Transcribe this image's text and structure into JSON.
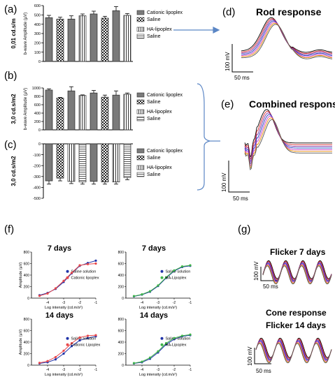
{
  "panel_labels": {
    "a": "(a)",
    "b": "(b)",
    "c": "(c)",
    "d": "(d)",
    "e": "(e)",
    "f": "(f)",
    "g": "(g)"
  },
  "colors": {
    "cationic": "#e8484b",
    "saline": "#2033a8",
    "ha": "#3fb44a",
    "bar_stroke": "#333333"
  },
  "chart_data": [
    {
      "id": "a",
      "type": "bar",
      "side_label": "0,01 cd.s/m",
      "ylabel": "b-wave Amplitude (µV)",
      "ylim": [
        0,
        600
      ],
      "ticks": [
        "0",
        "100",
        "200",
        "300",
        "400",
        "500",
        "600"
      ],
      "patterns": [
        "grey",
        "check",
        "grey",
        "vline",
        "grey",
        "check",
        "grey",
        "vline"
      ],
      "values": [
        470,
        455,
        455,
        490,
        510,
        465,
        545,
        495
      ],
      "errors": [
        25,
        20,
        35,
        20,
        30,
        20,
        45,
        20
      ],
      "legend": [
        "Cationic lipoplex",
        "Saline",
        "HA-lipoplex",
        "Saline"
      ]
    },
    {
      "id": "b",
      "type": "bar",
      "side_label": "3,0 cd.s/m2",
      "ylabel": "b-wave Amplitude (µV)",
      "ylim": [
        0,
        1000
      ],
      "ticks": [
        "0",
        "200",
        "400",
        "600",
        "800",
        "1000"
      ],
      "patterns": [
        "grey",
        "check",
        "grey",
        "vline",
        "grey",
        "check",
        "grey",
        "vline"
      ],
      "values": [
        950,
        760,
        930,
        820,
        880,
        780,
        830,
        850
      ],
      "errors": [
        30,
        15,
        100,
        15,
        60,
        50,
        100,
        30
      ],
      "legend": [
        "Cationic lipoplex",
        "Saline",
        "HA-lipoplex",
        "Saline"
      ]
    },
    {
      "id": "c",
      "type": "bar",
      "side_label": "3,0 cd.s/m2",
      "ylim": [
        -500,
        0
      ],
      "ticks": [
        "0",
        "-100",
        "-200",
        "-300",
        "-400",
        "-500"
      ],
      "patterns": [
        "grey",
        "check",
        "vline",
        "hline",
        "grey",
        "check",
        "vline",
        "hline"
      ],
      "values": [
        -340,
        -315,
        -345,
        -350,
        -345,
        -350,
        -350,
        -310
      ],
      "errors": [
        30,
        25,
        20,
        20,
        25,
        20,
        20,
        20
      ],
      "legend": [
        "Cationic lipoplex",
        "Saline",
        "HA-lipoplex",
        "Saline"
      ]
    },
    {
      "id": "f1",
      "type": "scatter",
      "title": "7 days",
      "xlabel": "Log intensity (cd.m/s²)",
      "ylabel": "Amplitude (µV)",
      "xlim": [
        -5,
        -1
      ],
      "ylim": [
        0,
        800
      ],
      "xticks": [
        "-4",
        "-3",
        "-2",
        "-1"
      ],
      "yticks": [
        "0",
        "200",
        "400",
        "600",
        "800"
      ],
      "series": [
        {
          "name": "Saline solution",
          "color": "#2033a8",
          "x": [
            -4.5,
            -4,
            -3.5,
            -3,
            -2.5,
            -2,
            -1.5,
            -1
          ],
          "y": [
            50,
            90,
            160,
            280,
            430,
            560,
            610,
            650
          ]
        },
        {
          "name": "Cationic lipoplex",
          "color": "#e8484b",
          "x": [
            -4.5,
            -4,
            -3.5,
            -3,
            -2.5,
            -2,
            -1.5,
            -1
          ],
          "y": [
            40,
            80,
            170,
            300,
            440,
            570,
            590,
            600
          ]
        }
      ]
    },
    {
      "id": "f2",
      "type": "scatter",
      "title": "7 days",
      "xlabel": "Log intensity (cd.m/s²)",
      "ylabel": "",
      "xlim": [
        -5,
        -1
      ],
      "ylim": [
        0,
        800
      ],
      "xticks": [
        "-4",
        "-3",
        "-2",
        "-1"
      ],
      "yticks": [
        "0",
        "200",
        "400",
        "600",
        "800"
      ],
      "series": [
        {
          "name": "Saline solution",
          "color": "#2033a8",
          "x": [
            -4.5,
            -4,
            -3.5,
            -3,
            -2.5,
            -2,
            -1.5,
            -1
          ],
          "y": [
            30,
            60,
            110,
            210,
            350,
            470,
            540,
            560
          ]
        },
        {
          "name": "HA-Lipoplex",
          "color": "#3fb44a",
          "x": [
            -4.5,
            -4,
            -3.5,
            -3,
            -2.5,
            -2,
            -1.5,
            -1
          ],
          "y": [
            35,
            65,
            120,
            220,
            360,
            480,
            550,
            570
          ]
        }
      ]
    },
    {
      "id": "f3",
      "type": "scatter",
      "title": "14 days",
      "xlabel": "Log intensity (cd.m/s²)",
      "ylabel": "Amplitude (µV)",
      "xlim": [
        -5,
        -1
      ],
      "ylim": [
        0,
        800
      ],
      "xticks": [
        "-4",
        "-3",
        "-2",
        "-1"
      ],
      "yticks": [
        "0",
        "200",
        "400",
        "600",
        "800"
      ],
      "series": [
        {
          "name": "Saline solution",
          "color": "#2033a8",
          "x": [
            -4.5,
            -4,
            -3.5,
            -3,
            -2.5,
            -2,
            -1.5,
            -1
          ],
          "y": [
            30,
            50,
            100,
            200,
            330,
            430,
            470,
            500
          ]
        },
        {
          "name": "Cationic Lipoplex",
          "color": "#e8484b",
          "x": [
            -4.5,
            -4,
            -3.5,
            -3,
            -2.5,
            -2,
            -1.5,
            -1
          ],
          "y": [
            40,
            70,
            140,
            250,
            380,
            480,
            510,
            520
          ]
        }
      ]
    },
    {
      "id": "f4",
      "type": "scatter",
      "title": "14 days",
      "xlabel": "Log intensity (cd.m/s²)",
      "ylabel": "",
      "xlim": [
        -5,
        -1
      ],
      "ylim": [
        0,
        800
      ],
      "xticks": [
        "-4",
        "-3",
        "-2",
        "-1"
      ],
      "yticks": [
        "0",
        "200",
        "400",
        "600",
        "800"
      ],
      "series": [
        {
          "name": "Saline solution",
          "color": "#2033a8",
          "x": [
            -4.5,
            -4,
            -3.5,
            -3,
            -2.5,
            -2,
            -1.5,
            -1
          ],
          "y": [
            30,
            50,
            110,
            220,
            360,
            450,
            500,
            520
          ]
        },
        {
          "name": "HA-Lipoplex",
          "color": "#3fb44a",
          "x": [
            -4.5,
            -4,
            -3.5,
            -3,
            -2.5,
            -2,
            -1.5,
            -1
          ],
          "y": [
            35,
            60,
            130,
            240,
            380,
            470,
            510,
            530
          ]
        }
      ]
    }
  ],
  "traces": {
    "d": {
      "title": "Rod response",
      "vscale": "100 mV",
      "tscale": "50 ms"
    },
    "e": {
      "title": "Combined response",
      "vscale": "100 mV",
      "tscale": "50 ms"
    },
    "g1": {
      "title": "Flicker 7 days",
      "vscale": "100 mV",
      "tscale": "50 ms"
    },
    "g2": {
      "heading": "Cone response",
      "title": "Flicker 14 days",
      "vscale": "100 mV",
      "tscale": "50 ms"
    }
  }
}
